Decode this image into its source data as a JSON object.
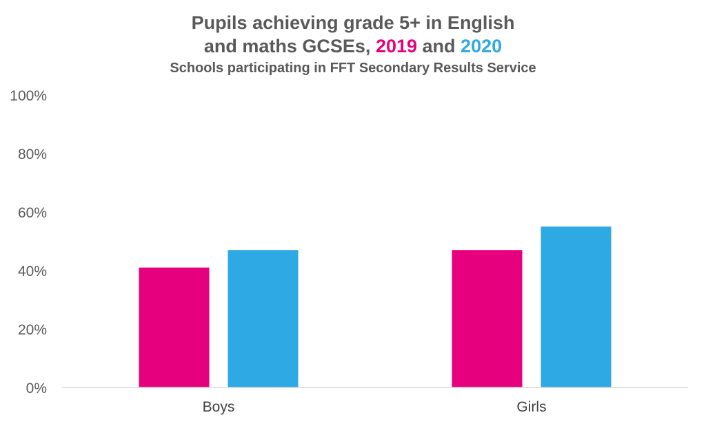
{
  "title": {
    "line1": "Pupils achieving grade 5+ in English",
    "line2_prefix": "and maths GCSEs, ",
    "line2_year1": "2019",
    "line2_mid": " and ",
    "line2_year2": "2020",
    "subtitle": "Schools participating in FFT Secondary Results Service"
  },
  "chart_data": {
    "type": "bar",
    "title": "Pupils achieving grade 5+ in English and maths GCSEs, 2019 and 2020",
    "subtitle": "Schools participating in FFT Secondary Results Service",
    "categories": [
      "Boys",
      "Girls"
    ],
    "series": [
      {
        "name": "2019",
        "color": "#e6007e",
        "values": [
          41,
          47
        ]
      },
      {
        "name": "2020",
        "color": "#2ea9e3",
        "values": [
          47,
          55
        ]
      }
    ],
    "ylim": [
      0,
      100
    ],
    "yticks": [
      0,
      20,
      40,
      60,
      80,
      100
    ],
    "ytick_labels": [
      "0%",
      "20%",
      "40%",
      "60%",
      "80%",
      "100%"
    ],
    "ylabel": "",
    "xlabel": "",
    "grid": false,
    "legend": "in-title"
  }
}
